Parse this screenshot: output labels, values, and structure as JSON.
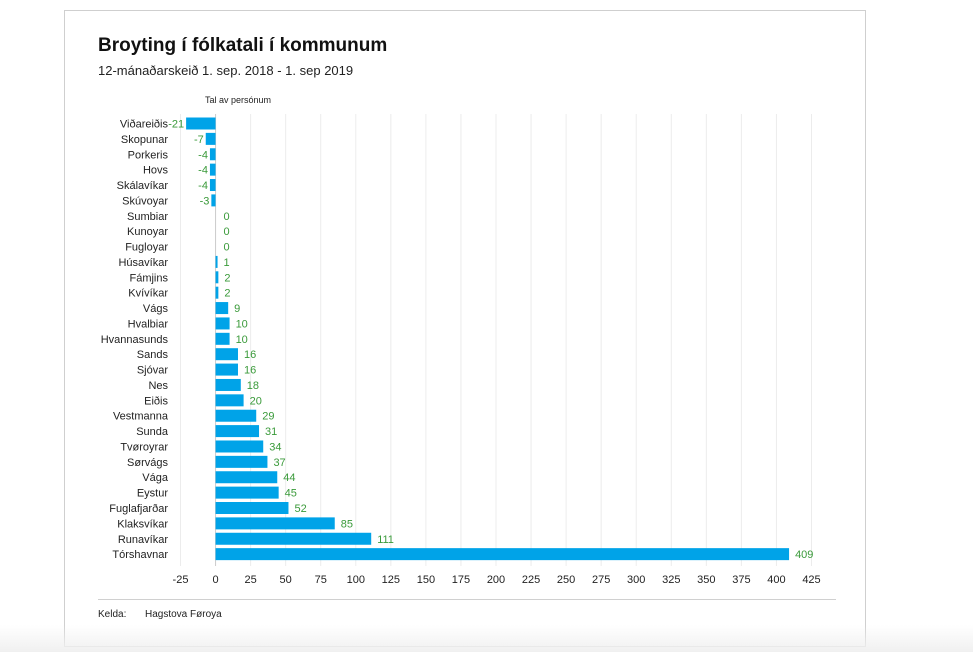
{
  "chart_data": {
    "type": "bar",
    "orientation": "horizontal",
    "title": "Broyting í fólkatali í kommunum",
    "subtitle": "12-mánaðarskeið 1. sep. 2018 - 1. sep 2019",
    "xlabel": "Tal av persónum",
    "ylabel": "",
    "xlim": [
      -25,
      425
    ],
    "xticks": [
      -25,
      0,
      25,
      50,
      75,
      100,
      125,
      150,
      175,
      200,
      225,
      250,
      275,
      300,
      325,
      350,
      375,
      400,
      425
    ],
    "grid": true,
    "categories": [
      "Viðareiðis",
      "Skopunar",
      "Porkeris",
      "Hovs",
      "Skálavíkar",
      "Skúvoyar",
      "Sumbiar",
      "Kunoyar",
      "Fugloyar",
      "Húsavíkar",
      "Fámjins",
      "Kvívíkar",
      "Vágs",
      "Hvalbiar",
      "Hvannasunds",
      "Sands",
      "Sjóvar",
      "Nes",
      "Eiðis",
      "Vestmanna",
      "Sunda",
      "Tvøroyrar",
      "Sørvágs",
      "Vága",
      "Eystur",
      "Fuglafjarðar",
      "Klaksvíkar",
      "Runavíkar",
      "Tórshavnar"
    ],
    "values": [
      -21,
      -7,
      -4,
      -4,
      -4,
      -3,
      0,
      0,
      0,
      1,
      2,
      2,
      9,
      10,
      10,
      16,
      16,
      18,
      20,
      29,
      31,
      34,
      37,
      44,
      45,
      52,
      85,
      111,
      409
    ],
    "bar_color": "#00a3e8",
    "label_color": "#3a9a3a"
  },
  "footer": {
    "source_label": "Kelda:",
    "source_value": "Hagstova Føroya"
  }
}
